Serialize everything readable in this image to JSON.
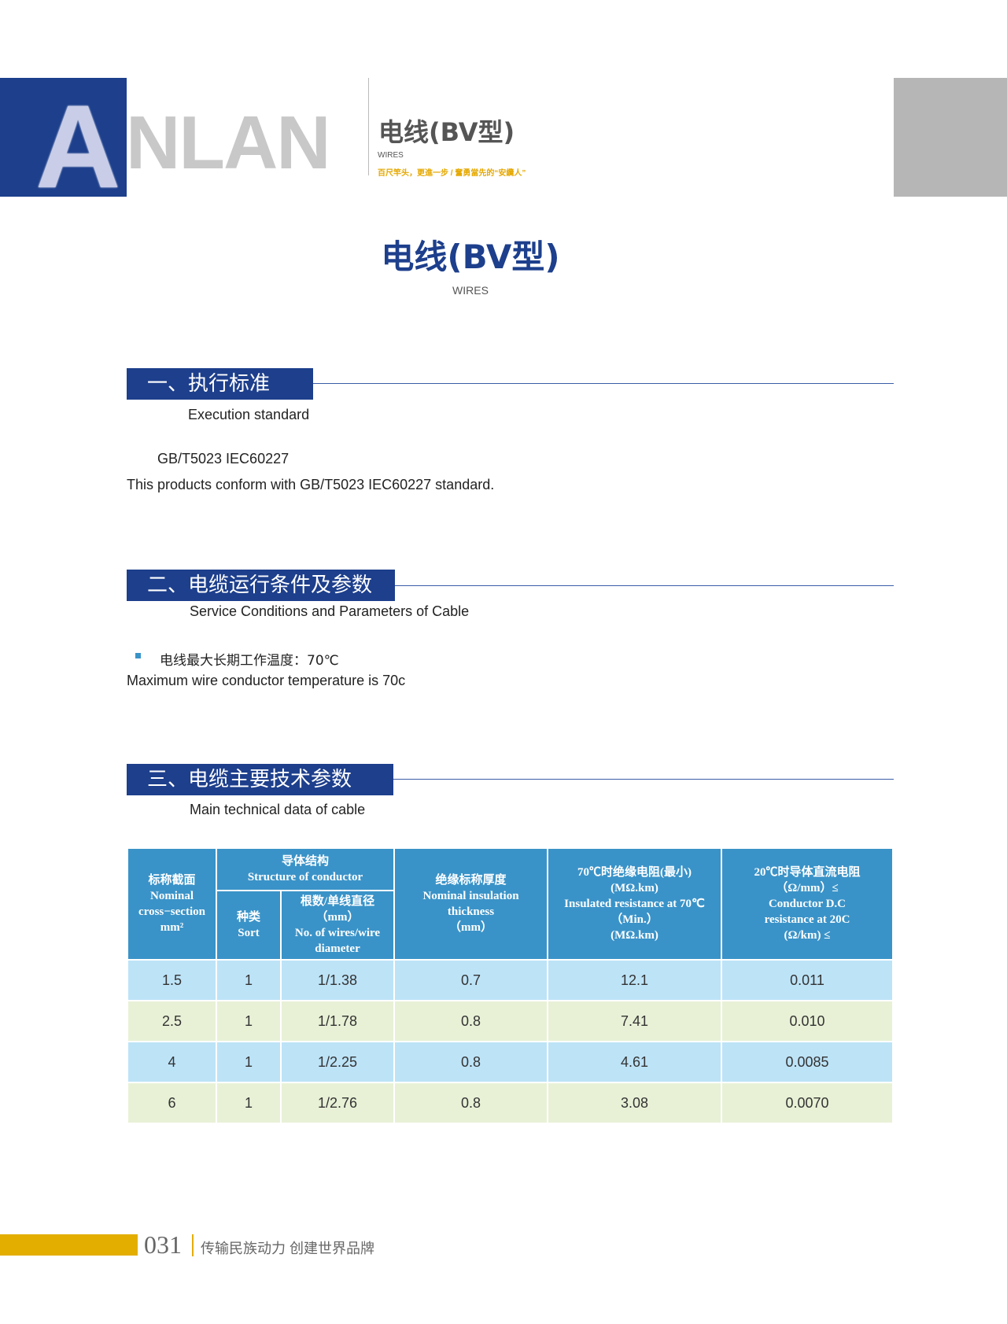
{
  "header": {
    "logo_letter": "A",
    "brand": "NLAN",
    "title": "电线(BV型)",
    "wires": "WIRES",
    "slogan": "百尺竿头，更進一步 / 奮勇當先的“安纜人”"
  },
  "page_title": "电线(BV型)",
  "page_subtitle": "WIRES",
  "sections": [
    {
      "title": "一、执行标准",
      "subtitle": "Execution standard",
      "lines": [
        "GB/T5023  IEC60227",
        "This products conform with GB/T5023  IEC60227 standard."
      ]
    },
    {
      "title": "二、电缆运行条件及参数",
      "subtitle": "Service Conditions and Parameters of Cable",
      "lines": [
        "电线最大长期工作温度：70℃",
        "Maximum wire conductor temperature is 70c"
      ]
    },
    {
      "title": "三、电缆主要技术参数",
      "subtitle": "Main technical data of cable"
    }
  ],
  "table": {
    "headers": {
      "cross": [
        "标称截面",
        "Nominal",
        "cross−section",
        "mm²"
      ],
      "structure": [
        "导体结构",
        "Structure of conductor"
      ],
      "sort": [
        "种类",
        "Sort"
      ],
      "wires": [
        "根数/单线直径",
        "（mm）",
        "No. of wires/wire",
        "diameter"
      ],
      "insulation": [
        "绝缘标称厚度",
        "Nominal insulation",
        "thickness",
        "（mm）"
      ],
      "ins_res": [
        "70℃时绝缘电阻(最小)",
        "(MΩ.km)",
        "Insulated resistance at 70℃",
        "（Min.）",
        "(MΩ.km)"
      ],
      "dc_res": [
        "20℃时导体直流电阻",
        "（Ω/mm）≤",
        "Conductor D.C",
        "resistance at 20C",
        "(Ω/km) ≤"
      ]
    },
    "rows": [
      [
        "1.5",
        "1",
        "1/1.38",
        "0.7",
        "12.1",
        "0.011"
      ],
      [
        "2.5",
        "1",
        "1/1.78",
        "0.8",
        "7.41",
        "0.010"
      ],
      [
        "4",
        "1",
        "1/2.25",
        "0.8",
        "4.61",
        "0.0085"
      ],
      [
        "6",
        "1",
        "1/2.76",
        "0.8",
        "3.08",
        "0.0070"
      ]
    ]
  },
  "footer": {
    "page": "031",
    "text": "传输民族动力  创建世界品牌"
  },
  "colors": {
    "brand": "#1d3f8c",
    "table_header": "#3a93c8",
    "row_blue": "#bde3f7",
    "row_green": "#e8f1d6",
    "accent": "#e3ae00"
  }
}
